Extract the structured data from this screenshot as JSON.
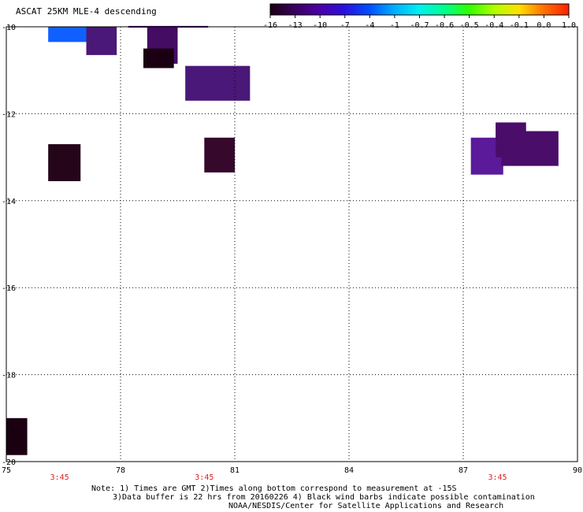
{
  "title": "ASCAT 25KM MLE-4 descending",
  "colorbar": {
    "labels": [
      "-16",
      "-13",
      "-10",
      "-7",
      "-4",
      "-1",
      "-0.7",
      "-0.6",
      "-0.5",
      "-0.4",
      "-0.1",
      "0.0",
      "1.0"
    ],
    "colors": [
      "#1a0010",
      "#3b005e",
      "#4b00a8",
      "#2a10e0",
      "#0050ff",
      "#00b0ff",
      "#00f0f0",
      "#00ff90",
      "#30ff00",
      "#b0ff00",
      "#ffe000",
      "#ff7000",
      "#ff2000"
    ]
  },
  "chart_data": {
    "type": "heatmap",
    "xlim": [
      75,
      90
    ],
    "ylim": [
      -20,
      -10
    ],
    "xticks": [
      "75",
      "78",
      "81",
      "84",
      "87",
      "90"
    ],
    "yticks": [
      "-10",
      "-12",
      "-14",
      "-16",
      "-18",
      "-20"
    ],
    "grid": true,
    "time_labels": [
      {
        "lon": 76.4,
        "text": "3:45"
      },
      {
        "lon": 80.2,
        "text": "3:45"
      },
      {
        "lon": 87.9,
        "text": "3:45"
      }
    ],
    "cells": [
      {
        "lon0": 76.1,
        "lon1": 77.1,
        "lat0": -10.0,
        "lat1": -10.35,
        "color": "#1060ff"
      },
      {
        "lon0": 77.1,
        "lon1": 77.9,
        "lat0": -10.0,
        "lat1": -10.65,
        "color": "#4a1878"
      },
      {
        "lon0": 78.2,
        "lon1": 80.3,
        "lat0": -9.98,
        "lat1": -10.02,
        "color": "#4a1878"
      },
      {
        "lon0": 78.7,
        "lon1": 79.5,
        "lat0": -10.0,
        "lat1": -10.85,
        "color": "#450c63"
      },
      {
        "lon0": 78.6,
        "lon1": 79.4,
        "lat0": -10.5,
        "lat1": -10.95,
        "color": "#1a0010"
      },
      {
        "lon0": 79.7,
        "lon1": 81.4,
        "lat0": -10.9,
        "lat1": -11.7,
        "color": "#4a1878"
      },
      {
        "lon0": 76.1,
        "lon1": 76.95,
        "lat0": -12.7,
        "lat1": -13.55,
        "color": "#24051a"
      },
      {
        "lon0": 80.2,
        "lon1": 81.0,
        "lat0": -12.55,
        "lat1": -13.35,
        "color": "#35082c"
      },
      {
        "lon0": 87.2,
        "lon1": 88.05,
        "lat0": -12.55,
        "lat1": -13.4,
        "color": "#5a1a9a"
      },
      {
        "lon0": 87.85,
        "lon1": 88.65,
        "lat0": -12.2,
        "lat1": -13.0,
        "color": "#4a0d6a"
      },
      {
        "lon0": 88.0,
        "lon1": 89.5,
        "lat0": -12.4,
        "lat1": -13.2,
        "color": "#4a0d6a"
      },
      {
        "lon0": 75.0,
        "lon1": 75.55,
        "lat0": -19.0,
        "lat1": -19.85,
        "color": "#1a0010"
      }
    ]
  },
  "notes": [
    "Note: 1) Times are GMT 2)Times along bottom correspond to measurement at -15S",
    "3)Data buffer is 22 hrs from 20160226 4) Black wind barbs indicate possible contamination",
    "NOAA/NESDIS/Center for Satellite Applications and Research"
  ]
}
